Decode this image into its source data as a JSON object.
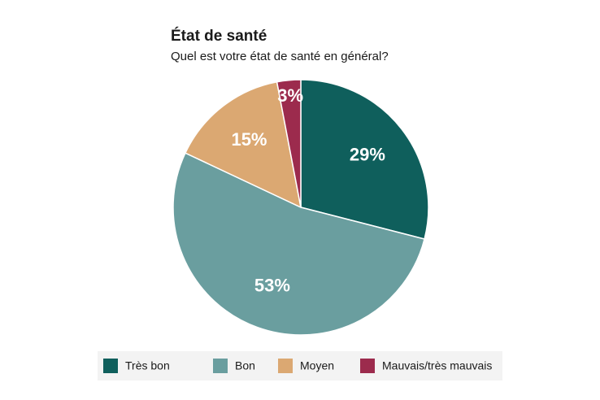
{
  "chart_data": {
    "type": "pie",
    "title": "État de santé",
    "subtitle": "Quel est votre état de santé en général?",
    "categories": [
      "Très bon",
      "Bon",
      "Moyen",
      "Mauvais/très mauvais"
    ],
    "values": [
      29,
      53,
      15,
      3
    ],
    "value_labels": [
      "29%",
      "53%",
      "15%",
      "3%"
    ],
    "colors": [
      "#0f5f5c",
      "#6a9e9f",
      "#dba872",
      "#9c2b4d"
    ]
  }
}
